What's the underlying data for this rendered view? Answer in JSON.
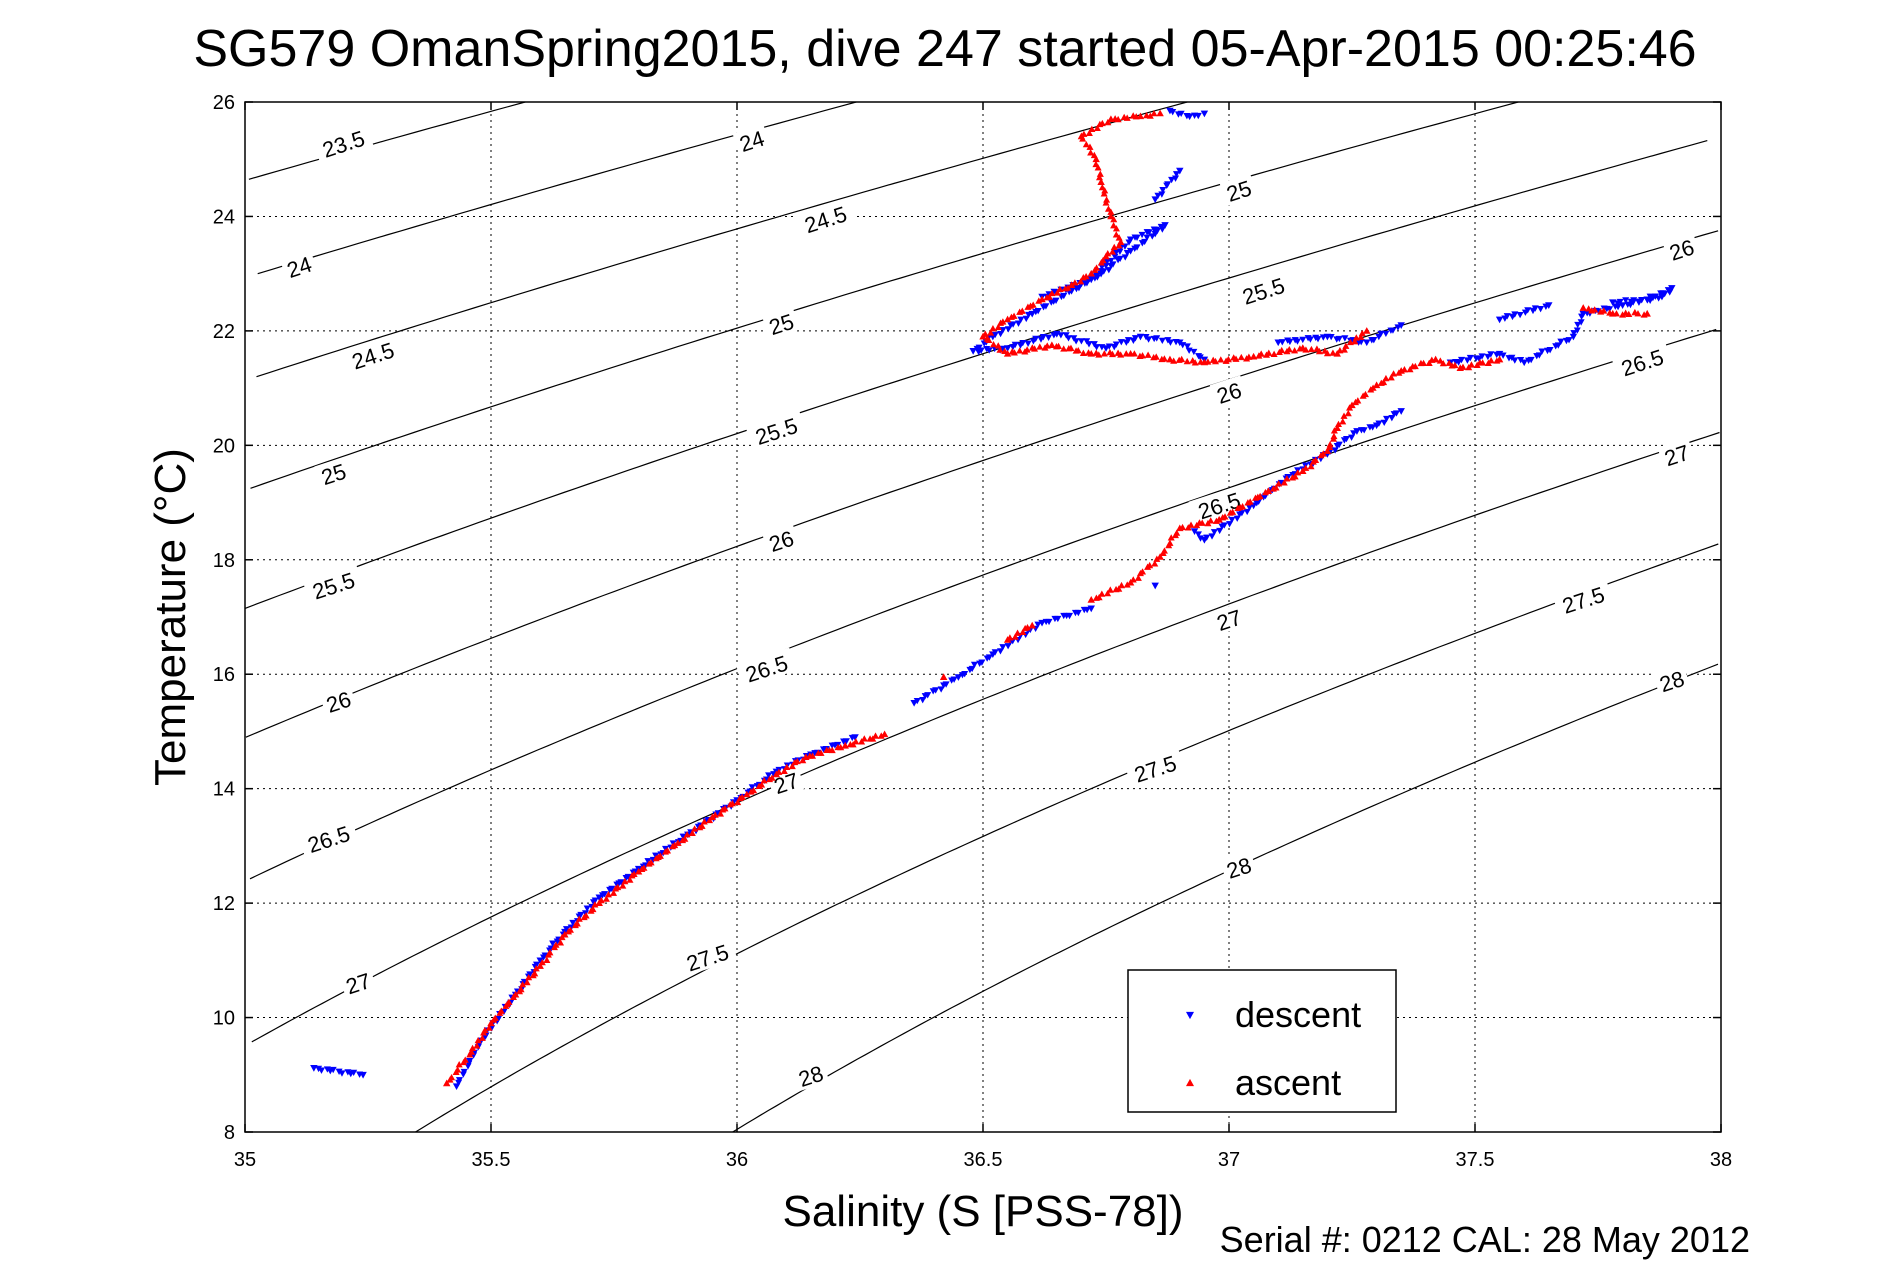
{
  "chart_data": {
    "type": "scatter",
    "title": "SG579 OmanSpring2015, dive 247 started 05-Apr-2015 00:25:46",
    "xlabel": "Salinity (S [PSS-78])",
    "ylabel": "Temperature (°C)",
    "footer": "Serial #: 0212  CAL: 28 May 2012",
    "xlim": [
      35,
      38
    ],
    "ylim": [
      8,
      26
    ],
    "x_ticks": [
      "35",
      "35.5",
      "36",
      "36.5",
      "37",
      "37.5",
      "38"
    ],
    "y_ticks": [
      "8",
      "10",
      "12",
      "14",
      "16",
      "18",
      "20",
      "22",
      "24",
      "26"
    ],
    "grid": true,
    "legend_position": "bottom-right",
    "colors": {
      "descent": "#0000ff",
      "ascent": "#ff0000",
      "contour": "#000000",
      "grid": "#000000"
    },
    "contours": {
      "levels": [
        "23.5",
        "24",
        "24.5",
        "25",
        "25.5",
        "26",
        "26.5",
        "27",
        "27.5",
        "28"
      ],
      "labels": [
        {
          "text": "23.5",
          "s": 35.2,
          "t": 25.27
        },
        {
          "text": "24",
          "s": 35.11,
          "t": 23.12
        },
        {
          "text": "24.5",
          "s": 35.26,
          "t": 21.57
        },
        {
          "text": "25",
          "s": 35.18,
          "t": 19.5
        },
        {
          "text": "25.5",
          "s": 35.18,
          "t": 17.55
        },
        {
          "text": "26",
          "s": 35.19,
          "t": 15.52
        },
        {
          "text": "26.5",
          "s": 35.17,
          "t": 13.12
        },
        {
          "text": "27",
          "s": 35.23,
          "t": 10.6
        },
        {
          "text": "24",
          "s": 36.03,
          "t": 25.32
        },
        {
          "text": "24.5",
          "s": 36.18,
          "t": 23.95
        },
        {
          "text": "25",
          "s": 36.09,
          "t": 22.12
        },
        {
          "text": "25.5",
          "s": 36.08,
          "t": 20.25
        },
        {
          "text": "26",
          "s": 36.09,
          "t": 18.33
        },
        {
          "text": "26.5",
          "s": 36.06,
          "t": 16.1
        },
        {
          "text": "27",
          "s": 36.1,
          "t": 14.1
        },
        {
          "text": "27.5",
          "s": 35.94,
          "t": 11.05
        },
        {
          "text": "28",
          "s": 36.15,
          "t": 8.98
        },
        {
          "text": "25",
          "s": 37.02,
          "t": 24.45
        },
        {
          "text": "25.5",
          "s": 37.07,
          "t": 22.7
        },
        {
          "text": "26",
          "s": 37.0,
          "t": 20.92
        },
        {
          "text": "26.5",
          "s": 36.98,
          "t": 18.95
        },
        {
          "text": "27",
          "s": 37.0,
          "t": 16.95
        },
        {
          "text": "27.5",
          "s": 36.85,
          "t": 14.35
        },
        {
          "text": "28",
          "s": 37.02,
          "t": 12.62
        },
        {
          "text": "26",
          "s": 37.92,
          "t": 23.42
        },
        {
          "text": "26.5",
          "s": 37.84,
          "t": 21.45
        },
        {
          "text": "27",
          "s": 37.91,
          "t": 19.83
        },
        {
          "text": "27.5",
          "s": 37.72,
          "t": 17.3
        },
        {
          "text": "28",
          "s": 37.9,
          "t": 15.88
        }
      ]
    },
    "series": [
      {
        "name": "descent",
        "marker": "triangle-down",
        "color": "#0000ff",
        "points": [
          [
            35.14,
            9.12
          ],
          [
            35.24,
            9.0
          ],
          [
            35.43,
            8.8
          ],
          [
            35.48,
            9.6
          ],
          [
            35.55,
            10.4
          ],
          [
            35.6,
            11.0
          ],
          [
            35.65,
            11.5
          ],
          [
            35.72,
            12.1
          ],
          [
            35.8,
            12.6
          ],
          [
            35.9,
            13.2
          ],
          [
            36.0,
            13.8
          ],
          [
            36.08,
            14.3
          ],
          [
            36.15,
            14.6
          ],
          [
            36.24,
            14.9
          ],
          [
            36.36,
            15.5
          ],
          [
            36.45,
            15.95
          ],
          [
            36.52,
            16.35
          ],
          [
            36.62,
            16.9
          ],
          [
            36.72,
            17.15
          ],
          [
            36.85,
            17.55
          ],
          [
            36.93,
            18.5
          ],
          [
            36.95,
            18.35
          ],
          [
            37.05,
            18.95
          ],
          [
            37.12,
            19.45
          ],
          [
            37.2,
            19.85
          ],
          [
            37.26,
            20.25
          ],
          [
            37.3,
            20.35
          ],
          [
            37.35,
            20.6
          ],
          [
            37.45,
            21.45
          ],
          [
            37.55,
            21.6
          ],
          [
            37.6,
            21.45
          ],
          [
            37.7,
            21.9
          ],
          [
            37.72,
            22.3
          ],
          [
            37.8,
            22.45
          ],
          [
            37.88,
            22.6
          ],
          [
            37.9,
            22.75
          ],
          [
            37.85,
            22.55
          ],
          [
            37.78,
            22.5
          ],
          [
            37.65,
            22.45
          ],
          [
            37.55,
            22.2
          ],
          [
            37.35,
            22.1
          ],
          [
            37.28,
            21.8
          ],
          [
            37.2,
            21.9
          ],
          [
            37.1,
            21.8
          ],
          [
            36.95,
            21.5
          ],
          [
            36.9,
            21.8
          ],
          [
            36.82,
            21.9
          ],
          [
            36.75,
            21.7
          ],
          [
            36.65,
            21.95
          ],
          [
            36.55,
            21.7
          ],
          [
            36.48,
            21.65
          ],
          [
            36.52,
            21.9
          ],
          [
            36.6,
            22.3
          ],
          [
            36.68,
            22.7
          ],
          [
            36.74,
            23.0
          ],
          [
            36.8,
            23.4
          ],
          [
            36.85,
            23.7
          ],
          [
            36.87,
            23.85
          ],
          [
            36.8,
            23.6
          ],
          [
            36.72,
            22.9
          ],
          [
            36.62,
            22.6
          ],
          [
            36.88,
            25.85
          ],
          [
            36.92,
            25.75
          ],
          [
            36.95,
            25.8
          ],
          [
            36.9,
            24.8
          ],
          [
            36.85,
            24.3
          ]
        ]
      },
      {
        "name": "ascent",
        "marker": "triangle-up",
        "color": "#ff0000",
        "points": [
          [
            35.41,
            8.85
          ],
          [
            35.46,
            9.4
          ],
          [
            35.5,
            9.9
          ],
          [
            35.55,
            10.4
          ],
          [
            35.6,
            10.9
          ],
          [
            35.65,
            11.45
          ],
          [
            35.72,
            12.0
          ],
          [
            35.8,
            12.55
          ],
          [
            35.88,
            13.05
          ],
          [
            35.95,
            13.5
          ],
          [
            36.02,
            13.9
          ],
          [
            36.08,
            14.25
          ],
          [
            36.14,
            14.55
          ],
          [
            36.22,
            14.75
          ],
          [
            36.3,
            14.95
          ],
          [
            36.42,
            15.95
          ],
          [
            36.55,
            16.6
          ],
          [
            36.6,
            16.85
          ],
          [
            36.72,
            17.3
          ],
          [
            36.8,
            17.6
          ],
          [
            36.86,
            18.05
          ],
          [
            36.9,
            18.55
          ],
          [
            36.98,
            18.7
          ],
          [
            37.08,
            19.2
          ],
          [
            37.15,
            19.55
          ],
          [
            37.2,
            19.9
          ],
          [
            37.22,
            20.3
          ],
          [
            37.25,
            20.7
          ],
          [
            37.3,
            21.05
          ],
          [
            37.35,
            21.3
          ],
          [
            37.42,
            21.5
          ],
          [
            37.47,
            21.35
          ],
          [
            37.55,
            21.5
          ],
          [
            37.72,
            22.4
          ],
          [
            37.78,
            22.3
          ],
          [
            37.85,
            22.3
          ],
          [
            37.28,
            22.0
          ],
          [
            37.22,
            21.6
          ],
          [
            37.15,
            21.7
          ],
          [
            37.05,
            21.55
          ],
          [
            36.95,
            21.45
          ],
          [
            36.88,
            21.5
          ],
          [
            36.8,
            21.6
          ],
          [
            36.72,
            21.6
          ],
          [
            36.64,
            21.75
          ],
          [
            36.55,
            21.6
          ],
          [
            36.5,
            21.9
          ],
          [
            36.55,
            22.2
          ],
          [
            36.62,
            22.55
          ],
          [
            36.68,
            22.8
          ],
          [
            36.72,
            23.0
          ],
          [
            36.75,
            23.3
          ],
          [
            36.78,
            23.55
          ],
          [
            36.76,
            24.0
          ],
          [
            36.74,
            24.6
          ],
          [
            36.73,
            25.0
          ],
          [
            36.7,
            25.4
          ],
          [
            36.76,
            25.7
          ],
          [
            36.82,
            25.75
          ],
          [
            36.86,
            25.8
          ]
        ]
      }
    ]
  }
}
